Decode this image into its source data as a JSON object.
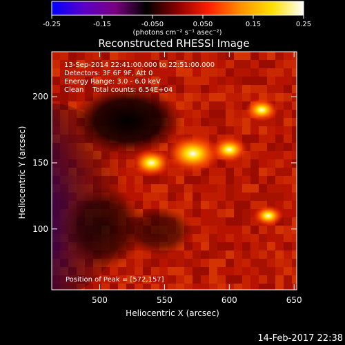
{
  "chart_data": {
    "type": "heatmap",
    "title": "Reconstructed RHESSI Image",
    "xlabel": "Heliocentric X (arcsec)",
    "ylabel": "Heliocentric Y (arcsec)",
    "xlim": [
      463,
      652
    ],
    "ylim": [
      54,
      234
    ],
    "xticks": [
      500,
      550,
      600,
      650
    ],
    "yticks": [
      100,
      150,
      200
    ],
    "colorbar": {
      "ticks": [
        "-0.25",
        "-0.15",
        "-0.050",
        "0.050",
        "0.15",
        "0.25"
      ],
      "range": [
        -0.25,
        0.25
      ],
      "unit_label": "(photons cm⁻² s⁻¹ asec⁻²)",
      "colormap": [
        "#0000ff",
        "#5a00c8",
        "#7a0080",
        "#000000",
        "#8c0000",
        "#ff2000",
        "#ff9000",
        "#ffe000",
        "#ffffff"
      ]
    },
    "annotations": {
      "time_range": "13-Sep-2014 22:41:00.000 to 22:51:00.000",
      "detectors": "Detectors: 3F 6F 9F, Att 0",
      "energy": "Energy Range: 3.0 - 6.0 keV",
      "method": "Clean    Total counts: 6.54E+04",
      "peak": "Position of Peak = [572,157]"
    },
    "sources": [
      {
        "x": 572,
        "y": 157,
        "peak": 0.25
      },
      {
        "x": 540,
        "y": 150,
        "peak": 0.16
      },
      {
        "x": 600,
        "y": 160,
        "peak": 0.14
      },
      {
        "x": 625,
        "y": 190,
        "peak": 0.12
      },
      {
        "x": 630,
        "y": 110,
        "peak": 0.1
      }
    ],
    "grid": false
  },
  "footer": {
    "timestamp": "14-Feb-2017 22:38"
  }
}
